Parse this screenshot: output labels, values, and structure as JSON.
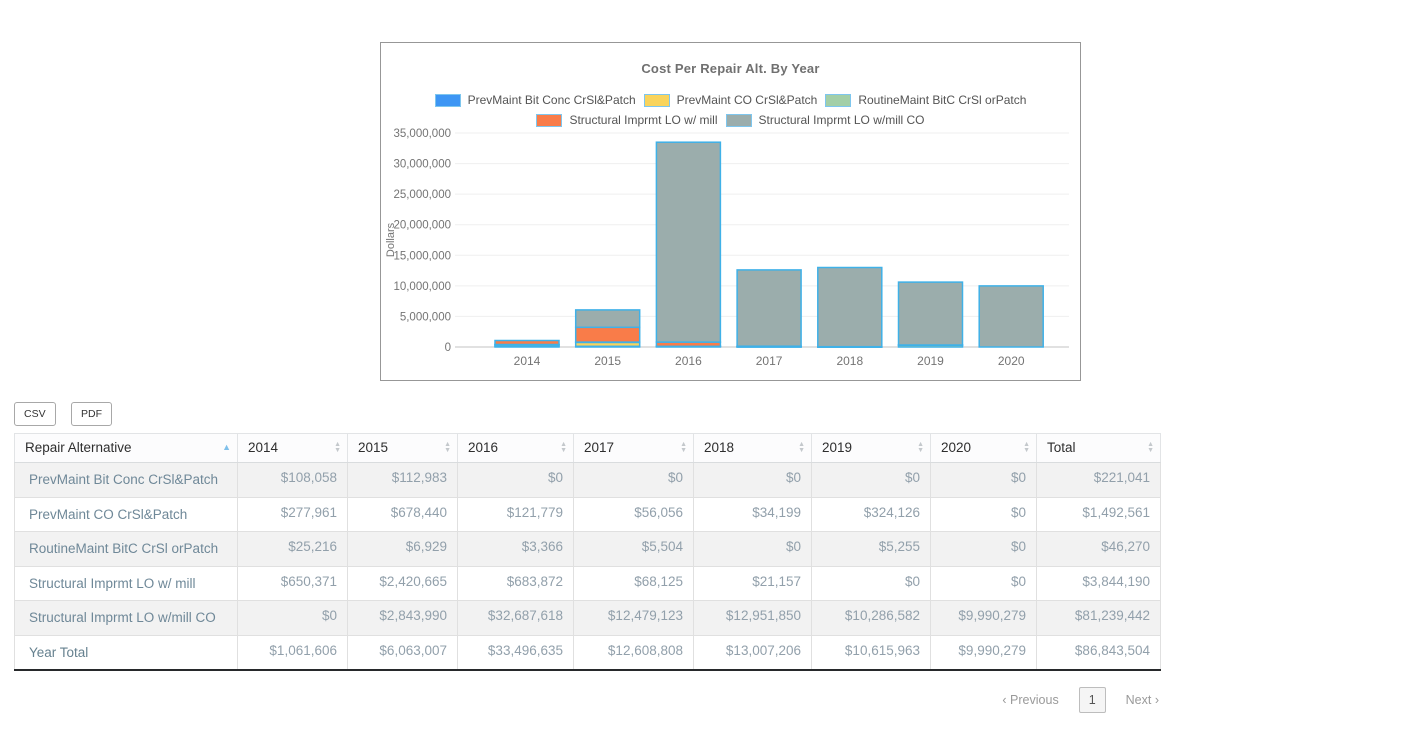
{
  "chart": {
    "title": "Cost Per Repair Alt. By Year",
    "ylabel": "Dollars"
  },
  "chart_data": {
    "type": "bar",
    "stacked": true,
    "title": "Cost Per Repair Alt. By Year",
    "ylabel": "Dollars",
    "xlabel": "",
    "categories": [
      "2014",
      "2015",
      "2016",
      "2017",
      "2018",
      "2019",
      "2020"
    ],
    "series": [
      {
        "name": "PrevMaint Bit Conc CrSl&Patch",
        "color": "#3d96f4",
        "values": [
          108058,
          112983,
          0,
          0,
          0,
          0,
          0
        ]
      },
      {
        "name": "PrevMaint CO CrSl&Patch",
        "color": "#f9d45c",
        "values": [
          277961,
          678440,
          121779,
          56056,
          34199,
          324126,
          0
        ]
      },
      {
        "name": "RoutineMaint BitC CrSl orPatch",
        "color": "#a3cfa7",
        "values": [
          25216,
          6929,
          3366,
          5504,
          0,
          5255,
          0
        ]
      },
      {
        "name": "Structural Imprmt LO w/ mill",
        "color": "#f97c49",
        "values": [
          650371,
          2420665,
          683872,
          68125,
          21157,
          0,
          0
        ]
      },
      {
        "name": "Structural Imprmt LO w/mill CO",
        "color": "#9badac",
        "values": [
          0,
          2843990,
          32687618,
          12479123,
          12951850,
          10286582,
          9990279
        ]
      }
    ],
    "ylim": [
      0,
      35000000
    ],
    "ytick_step": 5000000,
    "ytick_labels": [
      "0",
      "5,000,000",
      "10,000,000",
      "15,000,000",
      "20,000,000",
      "25,000,000",
      "30,000,000",
      "35,000,000"
    ],
    "bar_stroke": "#3fb1e8",
    "grid": true,
    "legend_position": "top"
  },
  "toolbar": {
    "csv_label": "CSV",
    "pdf_label": "PDF"
  },
  "table": {
    "columns": [
      "Repair Alternative",
      "2014",
      "2015",
      "2016",
      "2017",
      "2018",
      "2019",
      "2020",
      "Total"
    ],
    "sorted_column": "Repair Alternative",
    "sort_direction": "asc",
    "rows": [
      {
        "label": "PrevMaint Bit Conc CrSl&Patch",
        "values": [
          "$108,058",
          "$112,983",
          "$0",
          "$0",
          "$0",
          "$0",
          "$0",
          "$221,041"
        ]
      },
      {
        "label": "PrevMaint CO CrSl&Patch",
        "values": [
          "$277,961",
          "$678,440",
          "$121,779",
          "$56,056",
          "$34,199",
          "$324,126",
          "$0",
          "$1,492,561"
        ]
      },
      {
        "label": "RoutineMaint BitC CrSl orPatch",
        "values": [
          "$25,216",
          "$6,929",
          "$3,366",
          "$5,504",
          "$0",
          "$5,255",
          "$0",
          "$46,270"
        ]
      },
      {
        "label": "Structural Imprmt LO w/ mill",
        "values": [
          "$650,371",
          "$2,420,665",
          "$683,872",
          "$68,125",
          "$21,157",
          "$0",
          "$0",
          "$3,844,190"
        ]
      },
      {
        "label": "Structural Imprmt LO w/mill CO",
        "values": [
          "$0",
          "$2,843,990",
          "$32,687,618",
          "$12,479,123",
          "$12,951,850",
          "$10,286,582",
          "$9,990,279",
          "$81,239,442"
        ]
      },
      {
        "label": "Year Total",
        "values": [
          "$1,061,606",
          "$6,063,007",
          "$33,496,635",
          "$12,608,808",
          "$13,007,206",
          "$10,615,963",
          "$9,990,279",
          "$86,843,504"
        ]
      }
    ]
  },
  "pagination": {
    "previous_label": "‹ Previous",
    "page": "1",
    "next_label": "Next ›"
  }
}
